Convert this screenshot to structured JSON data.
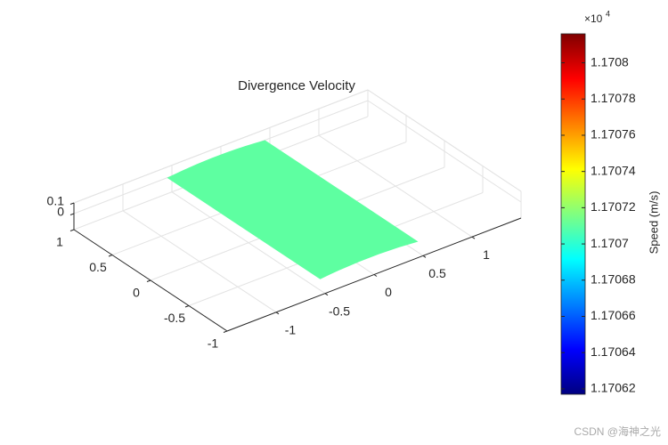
{
  "chart_data": {
    "type": "surface3d",
    "title": "Divergence Velocity",
    "xlim": [
      -1.5,
      1.5
    ],
    "xticks": [
      -1,
      -0.5,
      0,
      0.5,
      1
    ],
    "ylim": [
      -1,
      1
    ],
    "yticks": [
      -1,
      -0.5,
      0,
      0.5,
      1
    ],
    "zlim": [
      -0.15,
      0.1
    ],
    "zticks": [
      0,
      0.1
    ],
    "grid": true,
    "surface": {
      "x": [
        -0.55,
        0.45
      ],
      "y": [
        -1,
        1
      ],
      "z": 0,
      "value": 1.17071
    },
    "colormap": "jet",
    "clim": [
      1.170617,
      1.170816
    ],
    "colorbar_ticks": [
      1.17062,
      1.17064,
      1.17066,
      1.17068,
      1.1707,
      1.17072,
      1.17074,
      1.17076,
      1.17078,
      1.1708
    ],
    "colorbar_scale": {
      "base": "×10",
      "power": "4"
    },
    "colorbar_label": "Speed (m/s)",
    "watermark": "CSDN @海神之光"
  }
}
